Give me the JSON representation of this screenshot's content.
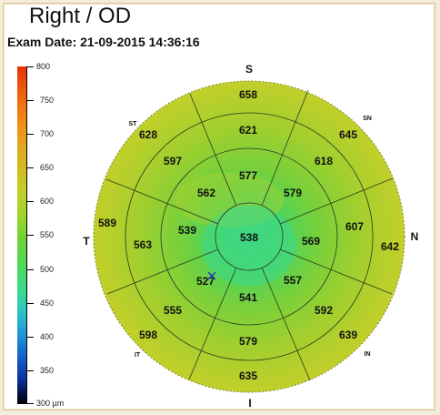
{
  "title": "Right / OD",
  "exam_date": "Exam Date: 21-09-2015 14:36:16",
  "scale": {
    "labels": [
      "800",
      "750",
      "700",
      "650",
      "600",
      "550",
      "500",
      "450",
      "400",
      "350",
      "300 µm"
    ],
    "values": [
      800,
      750,
      700,
      650,
      600,
      550,
      500,
      450,
      400,
      350,
      300
    ]
  },
  "directions": {
    "S": "S",
    "N": "N",
    "I": "I",
    "T": "T",
    "ST": "ST",
    "SN": "SN",
    "IT": "IT",
    "IN": "IN"
  },
  "sectors": {
    "center": "538",
    "ring1": {
      "top": "577",
      "upper_right": "579",
      "right": "569",
      "lower_right": "557",
      "bottom": "541",
      "lower_left": "527",
      "left": "539",
      "upper_left": "562"
    },
    "ring2": {
      "top": "621",
      "upper_right": "618",
      "right": "607",
      "lower_right": "592",
      "bottom": "579",
      "lower_left": "555",
      "left": "563",
      "upper_left": "597"
    },
    "ring3": {
      "top": "658",
      "upper_right": "645",
      "right": "642",
      "lower_right": "639",
      "bottom": "635",
      "lower_left": "598",
      "left": "589",
      "upper_left": "628"
    }
  },
  "colors": {
    "outer": "#b8cf2c",
    "mid": "#90d030",
    "inner": "#5fd24a",
    "center": "#3fd87e"
  }
}
